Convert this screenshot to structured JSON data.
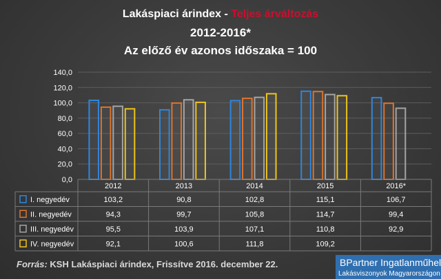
{
  "title": {
    "part1": "Lakáspiaci árindex - ",
    "part2": "Teljes árváltozás",
    "line2": "2012-2016*",
    "line3": "Az előző év azonos időszaka = 100"
  },
  "colors": {
    "q1": "#2e86de",
    "q2": "#e0742b",
    "q3": "#a5a5a5",
    "q4": "#f0c419",
    "title_red": "#c8102e",
    "brand_bg": "#2f6fb0"
  },
  "chart_data": {
    "type": "bar",
    "categories": [
      "2012",
      "2013",
      "2014",
      "2015",
      "2016*"
    ],
    "series": [
      {
        "name": "I. negyedév",
        "values": [
          103.2,
          90.8,
          102.8,
          115.1,
          106.7
        ],
        "labels": [
          "103,2",
          "90,8",
          "102,8",
          "115,1",
          "106,7"
        ]
      },
      {
        "name": "II. negyedév",
        "values": [
          94.3,
          99.7,
          105.8,
          114.7,
          99.4
        ],
        "labels": [
          "94,3",
          "99,7",
          "105,8",
          "114,7",
          "99,4"
        ]
      },
      {
        "name": "III. negyedév",
        "values": [
          95.5,
          103.9,
          107.1,
          110.8,
          92.9
        ],
        "labels": [
          "95,5",
          "103,9",
          "107,1",
          "110,8",
          "92,9"
        ]
      },
      {
        "name": "IV. negyedév",
        "values": [
          92.1,
          100.6,
          111.8,
          109.2,
          null
        ],
        "labels": [
          "92,1",
          "100,6",
          "111,8",
          "109,2",
          ""
        ]
      }
    ],
    "ylim": [
      0,
      140
    ],
    "yticks": [
      0,
      20,
      40,
      60,
      80,
      100,
      120,
      140
    ],
    "ytick_labels": [
      "0,0",
      "20,0",
      "40,0",
      "60,0",
      "80,0",
      "100,0",
      "120,0",
      "140,0"
    ],
    "grid": true,
    "legend": "data table below chart"
  },
  "footer": {
    "source_label": "Forrás:",
    "source_text": " KSH Lakáspiaci árindex, Frissítve 2016. december 22."
  },
  "brand": {
    "name": "BPartner Ingatlanműhely",
    "tagline": "Lakásviszonyok Magyarországon"
  }
}
